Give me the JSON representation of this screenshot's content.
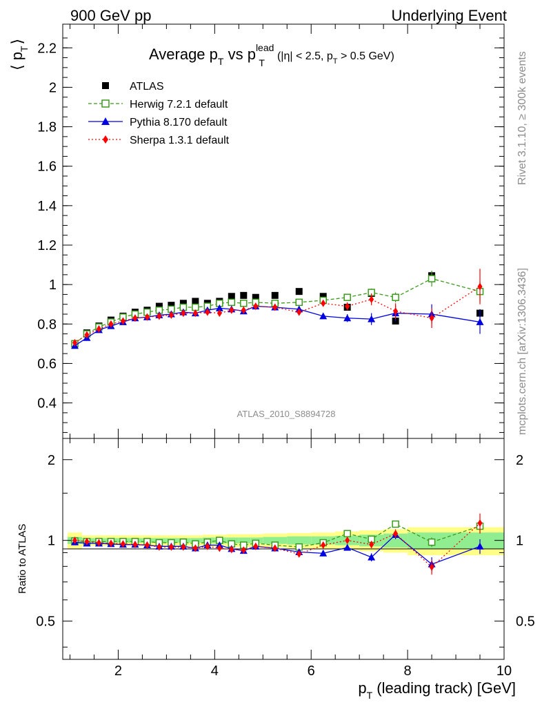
{
  "header": {
    "left": "900 GeV pp",
    "right": "Underlying Event"
  },
  "side_labels": {
    "rivet": "Rivet 3.1.10, ≥ 300k events",
    "mcplots": "mcplots.cern.ch [arXiv:1306.3436]"
  },
  "watermark": "ATLAS_2010_S8894728",
  "title": {
    "main": "Average p",
    "sub1": "T",
    "vs": " vs p",
    "sup2": "lead",
    "sub2": "T",
    "cut_open": "(|η| < 2.5, p",
    "cut_sub": "T",
    "cut_close": " > 0.5 GeV)"
  },
  "ylabel_top": {
    "open": "⟨ p",
    "sub": "T",
    "close": "⟩"
  },
  "ylabel_bottom": "Ratio to ATLAS",
  "xlabel": {
    "main": "p",
    "sub": "T",
    "rest": " (leading track) [GeV]"
  },
  "colors": {
    "atlas": "#000000",
    "herwig": "#3a9a1b",
    "pythia": "#0000e0",
    "sherpa": "#ff0000",
    "band_inner": "#90ee90",
    "band_outer": "#ffff88"
  },
  "chart_data": {
    "type": "scatter",
    "xlim": [
      0.85,
      10.0
    ],
    "ylim": [
      0.22,
      2.32
    ],
    "ratio_ylim": [
      0.36,
      2.4
    ],
    "ratio_log": true,
    "x_ticks": [
      2,
      4,
      6,
      8,
      10
    ],
    "y_ticks": [
      0.4,
      0.6,
      0.8,
      1,
      1.2,
      1.4,
      1.6,
      1.8,
      2,
      2.2
    ],
    "ratio_ticks": [
      0.5,
      1,
      2
    ],
    "x": [
      1.1,
      1.35,
      1.6,
      1.85,
      2.1,
      2.35,
      2.6,
      2.85,
      3.1,
      3.35,
      3.6,
      3.85,
      4.1,
      4.35,
      4.6,
      4.85,
      5.25,
      5.75,
      6.25,
      6.75,
      7.25,
      7.75,
      8.5,
      9.5
    ],
    "x_edges": [
      0.95,
      1.25,
      1.5,
      1.75,
      2.0,
      2.25,
      2.5,
      2.75,
      3.0,
      3.25,
      3.5,
      3.75,
      4.0,
      4.25,
      4.5,
      4.75,
      5.0,
      5.5,
      6.0,
      6.5,
      7.0,
      7.5,
      8.0,
      9.0,
      10.0
    ],
    "band_inner": [
      0.03,
      0.02,
      0.02,
      0.02,
      0.02,
      0.02,
      0.02,
      0.02,
      0.02,
      0.02,
      0.02,
      0.025,
      0.025,
      0.025,
      0.025,
      0.025,
      0.03,
      0.035,
      0.035,
      0.04,
      0.05,
      0.06,
      0.07,
      0.07
    ],
    "band_outer": [
      0.07,
      0.045,
      0.045,
      0.045,
      0.045,
      0.045,
      0.045,
      0.045,
      0.045,
      0.045,
      0.045,
      0.05,
      0.05,
      0.055,
      0.055,
      0.055,
      0.06,
      0.065,
      0.07,
      0.08,
      0.09,
      0.1,
      0.12,
      0.12
    ],
    "series": [
      {
        "name": "ATLAS",
        "key": "atlas",
        "values": [
          0.7,
          0.755,
          0.79,
          0.82,
          0.84,
          0.86,
          0.87,
          0.89,
          0.895,
          0.905,
          0.915,
          0.905,
          0.915,
          0.94,
          0.945,
          0.935,
          0.945,
          0.965,
          0.94,
          0.885,
          0.955,
          0.815,
          1.045,
          0.855
        ],
        "errors": [
          0.01,
          0.01,
          0.01,
          0.01,
          0.01,
          0.01,
          0.01,
          0.01,
          0.01,
          0.01,
          0.01,
          0.01,
          0.01,
          0.01,
          0.01,
          0.01,
          0.01,
          0.01,
          0.01,
          0.01,
          0.015,
          0.015,
          0.02,
          0.02
        ],
        "ratio": [
          1,
          1,
          1,
          1,
          1,
          1,
          1,
          1,
          1,
          1,
          1,
          1,
          1,
          1,
          1,
          1,
          1,
          1,
          1,
          1,
          1,
          1,
          1,
          1
        ]
      },
      {
        "name": "Herwig 7.2.1 default",
        "key": "herwig",
        "values": [
          0.7,
          0.75,
          0.785,
          0.81,
          0.835,
          0.85,
          0.86,
          0.87,
          0.875,
          0.885,
          0.885,
          0.89,
          0.905,
          0.91,
          0.905,
          0.91,
          0.905,
          0.91,
          0.92,
          0.935,
          0.96,
          0.935,
          1.03,
          0.965
        ],
        "errors": [
          0.005,
          0.005,
          0.005,
          0.005,
          0.005,
          0.005,
          0.005,
          0.005,
          0.005,
          0.005,
          0.005,
          0.005,
          0.005,
          0.008,
          0.008,
          0.008,
          0.01,
          0.01,
          0.01,
          0.015,
          0.02,
          0.025,
          0.04,
          0.05
        ],
        "ratio": [
          0.995,
          0.99,
          0.99,
          0.99,
          0.99,
          0.99,
          0.99,
          0.98,
          0.98,
          0.985,
          0.97,
          0.985,
          1.0,
          0.97,
          0.96,
          0.975,
          0.96,
          0.945,
          0.98,
          1.06,
          1.01,
          1.15,
          0.985,
          1.13
        ],
        "ratio_err": [
          0.005,
          0.005,
          0.005,
          0.005,
          0.005,
          0.005,
          0.005,
          0.005,
          0.005,
          0.005,
          0.005,
          0.005,
          0.005,
          0.008,
          0.008,
          0.008,
          0.01,
          0.01,
          0.01,
          0.015,
          0.02,
          0.03,
          0.04,
          0.06
        ]
      },
      {
        "name": "Pythia 8.170 default",
        "key": "pythia",
        "values": [
          0.69,
          0.73,
          0.77,
          0.79,
          0.81,
          0.83,
          0.835,
          0.845,
          0.85,
          0.86,
          0.855,
          0.87,
          0.88,
          0.875,
          0.865,
          0.89,
          0.885,
          0.875,
          0.84,
          0.83,
          0.825,
          0.855,
          0.85,
          0.81
        ],
        "errors": [
          0.005,
          0.005,
          0.005,
          0.005,
          0.005,
          0.005,
          0.005,
          0.005,
          0.005,
          0.005,
          0.005,
          0.005,
          0.005,
          0.008,
          0.008,
          0.008,
          0.01,
          0.012,
          0.015,
          0.02,
          0.03,
          0.04,
          0.05,
          0.06
        ],
        "ratio": [
          0.985,
          0.975,
          0.975,
          0.97,
          0.965,
          0.965,
          0.96,
          0.95,
          0.95,
          0.95,
          0.935,
          0.96,
          0.96,
          0.93,
          0.915,
          0.95,
          0.935,
          0.905,
          0.895,
          0.94,
          0.865,
          1.05,
          0.815,
          0.95
        ],
        "ratio_err": [
          0.005,
          0.005,
          0.005,
          0.005,
          0.005,
          0.005,
          0.005,
          0.005,
          0.005,
          0.005,
          0.005,
          0.005,
          0.005,
          0.008,
          0.008,
          0.008,
          0.01,
          0.012,
          0.015,
          0.02,
          0.03,
          0.04,
          0.05,
          0.06
        ]
      },
      {
        "name": "Sherpa 1.3.1 default",
        "key": "sherpa",
        "values": [
          0.705,
          0.745,
          0.775,
          0.8,
          0.815,
          0.83,
          0.835,
          0.84,
          0.845,
          0.855,
          0.855,
          0.86,
          0.855,
          0.87,
          0.87,
          0.89,
          0.885,
          0.86,
          0.905,
          0.89,
          0.925,
          0.865,
          0.83,
          0.99
        ],
        "errors": [
          0.005,
          0.005,
          0.005,
          0.005,
          0.005,
          0.005,
          0.005,
          0.005,
          0.005,
          0.005,
          0.005,
          0.005,
          0.005,
          0.008,
          0.008,
          0.008,
          0.01,
          0.012,
          0.015,
          0.02,
          0.03,
          0.04,
          0.05,
          0.09
        ],
        "ratio": [
          1.0,
          0.99,
          0.98,
          0.975,
          0.97,
          0.965,
          0.96,
          0.945,
          0.945,
          0.945,
          0.935,
          0.95,
          0.935,
          0.925,
          0.92,
          0.95,
          0.935,
          0.89,
          0.96,
          1.0,
          0.965,
          1.06,
          0.795,
          1.16
        ],
        "ratio_err": [
          0.005,
          0.005,
          0.005,
          0.005,
          0.005,
          0.005,
          0.005,
          0.005,
          0.005,
          0.005,
          0.005,
          0.005,
          0.005,
          0.008,
          0.008,
          0.008,
          0.01,
          0.012,
          0.015,
          0.02,
          0.03,
          0.04,
          0.05,
          0.1
        ]
      }
    ]
  }
}
